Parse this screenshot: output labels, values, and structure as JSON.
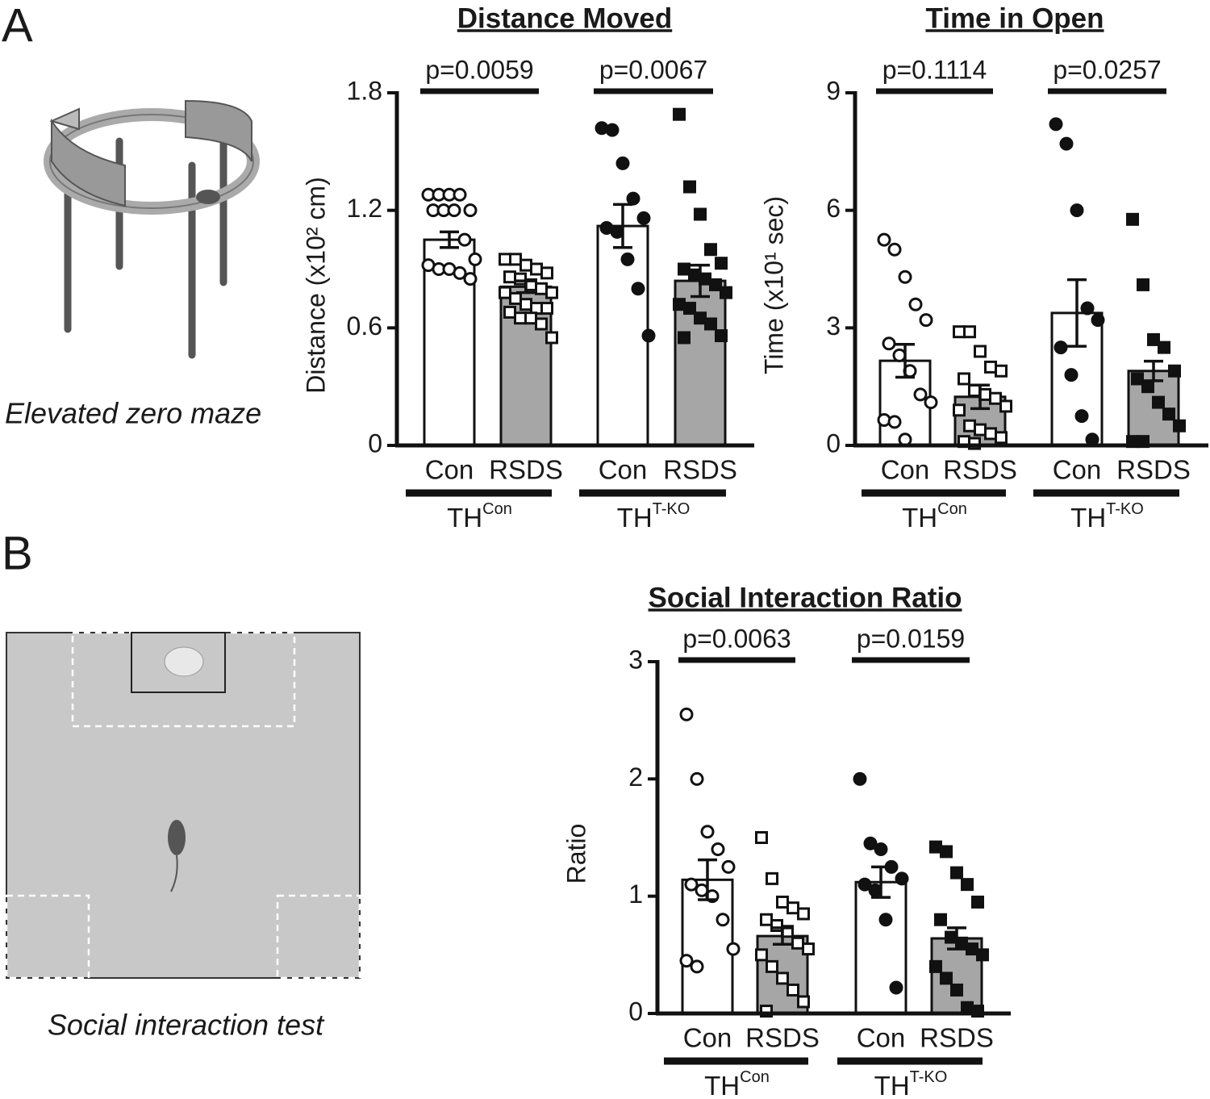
{
  "panels": [
    {
      "letter": "A",
      "caption": "Elevated zero maze"
    },
    {
      "letter": "B",
      "caption": "Social interaction test"
    }
  ],
  "chart_data": [
    {
      "type": "bar",
      "title": "Distance Moved",
      "y_label": "Distance (x10² cm)",
      "categories": [
        "Con",
        "RSDS",
        "Con",
        "RSDS"
      ],
      "groups": [
        {
          "name": "TH",
          "sup": "Con",
          "p": "p=0.0059"
        },
        {
          "name": "TH",
          "sup": "T-KO",
          "p": "p=0.0067"
        }
      ],
      "ylim": [
        0,
        1.8
      ],
      "yticks": [
        0,
        0.6,
        1.2,
        1.8
      ],
      "bars": [
        {
          "mean": 1.05,
          "sem": 0.04,
          "fill": "#ffffff",
          "marker": "circle",
          "filled": false,
          "points": [
            1.28,
            1.28,
            1.28,
            1.28,
            1.2,
            1.2,
            1.2,
            1.2,
            1.05,
            0.95,
            0.92,
            0.9,
            0.9,
            0.88,
            0.85
          ]
        },
        {
          "mean": 0.81,
          "sem": 0.03,
          "fill": "#a6a6a6",
          "marker": "square",
          "filled": false,
          "points": [
            0.95,
            0.95,
            0.92,
            0.9,
            0.88,
            0.86,
            0.85,
            0.82,
            0.8,
            0.78,
            0.78,
            0.75,
            0.72,
            0.7,
            0.7,
            0.68,
            0.65,
            0.65,
            0.62,
            0.55
          ]
        },
        {
          "mean": 1.12,
          "sem": 0.11,
          "fill": "#ffffff",
          "marker": "circle",
          "filled": true,
          "points": [
            1.62,
            1.61,
            1.44,
            1.26,
            1.16,
            1.11,
            1.09,
            0.95,
            0.8,
            0.56
          ]
        },
        {
          "mean": 0.84,
          "sem": 0.08,
          "fill": "#a6a6a6",
          "marker": "square",
          "filled": true,
          "points": [
            1.69,
            1.32,
            1.18,
            1.0,
            0.93,
            0.9,
            0.87,
            0.85,
            0.82,
            0.78,
            0.72,
            0.7,
            0.65,
            0.62,
            0.56,
            0.55
          ]
        }
      ]
    },
    {
      "type": "bar",
      "title": "Time in Open",
      "y_label": "Time (x10¹ sec)",
      "categories": [
        "Con",
        "RSDS",
        "Con",
        "RSDS"
      ],
      "groups": [
        {
          "name": "TH",
          "sup": "Con",
          "p": "p=0.1114"
        },
        {
          "name": "TH",
          "sup": "T-KO",
          "p": "p=0.0257"
        }
      ],
      "ylim": [
        0,
        9
      ],
      "yticks": [
        0,
        3,
        6,
        9
      ],
      "bars": [
        {
          "mean": 2.16,
          "sem": 0.42,
          "fill": "#ffffff",
          "marker": "circle",
          "filled": false,
          "points": [
            5.25,
            5.0,
            4.3,
            3.6,
            3.2,
            2.6,
            2.3,
            1.9,
            1.3,
            1.1,
            0.65,
            0.6,
            0.15
          ]
        },
        {
          "mean": 1.24,
          "sem": 0.3,
          "fill": "#a6a6a6",
          "marker": "square",
          "filled": false,
          "points": [
            2.9,
            2.9,
            2.4,
            2.0,
            1.9,
            1.7,
            1.4,
            1.3,
            1.2,
            1.0,
            0.9,
            0.5,
            0.4,
            0.3,
            0.2,
            0.1,
            0.05
          ]
        },
        {
          "mean": 3.38,
          "sem": 0.85,
          "fill": "#ffffff",
          "marker": "circle",
          "filled": true,
          "points": [
            8.2,
            7.7,
            6.0,
            3.5,
            3.2,
            2.5,
            1.8,
            0.75,
            0.15
          ]
        },
        {
          "mean": 1.9,
          "sem": 0.25,
          "fill": "#a6a6a6",
          "marker": "square",
          "filled": true,
          "points": [
            5.77,
            4.1,
            2.7,
            2.5,
            1.9,
            1.7,
            1.5,
            1.1,
            0.8,
            0.5,
            0.1,
            0.1
          ]
        }
      ]
    },
    {
      "type": "bar",
      "title": "Social Interaction Ratio",
      "y_label": "Ratio",
      "categories": [
        "Con",
        "RSDS",
        "Con",
        "RSDS"
      ],
      "groups": [
        {
          "name": "TH",
          "sup": "Con",
          "p": "p=0.0063"
        },
        {
          "name": "TH",
          "sup": "T-KO",
          "p": "p=0.0159"
        }
      ],
      "ylim": [
        0,
        3
      ],
      "yticks": [
        0,
        1,
        2,
        3
      ],
      "bars": [
        {
          "mean": 1.14,
          "sem": 0.17,
          "fill": "#ffffff",
          "marker": "circle",
          "filled": false,
          "points": [
            2.55,
            2.0,
            1.55,
            1.4,
            1.25,
            1.1,
            1.05,
            1.0,
            0.8,
            0.55,
            0.45,
            0.4
          ]
        },
        {
          "mean": 0.66,
          "sem": 0.07,
          "fill": "#a6a6a6",
          "marker": "square",
          "filled": false,
          "points": [
            1.5,
            1.15,
            0.95,
            0.9,
            0.85,
            0.8,
            0.75,
            0.7,
            0.6,
            0.55,
            0.5,
            0.4,
            0.3,
            0.2,
            0.1,
            0.02
          ]
        },
        {
          "mean": 1.12,
          "sem": 0.13,
          "fill": "#ffffff",
          "marker": "circle",
          "filled": true,
          "points": [
            2.0,
            1.45,
            1.4,
            1.25,
            1.15,
            1.1,
            1.05,
            0.8,
            0.22
          ]
        },
        {
          "mean": 0.64,
          "sem": 0.09,
          "fill": "#a6a6a6",
          "marker": "square",
          "filled": true,
          "points": [
            1.42,
            1.38,
            1.2,
            1.1,
            0.95,
            0.8,
            0.65,
            0.6,
            0.55,
            0.5,
            0.4,
            0.3,
            0.2,
            0.05,
            0.02
          ]
        }
      ]
    }
  ]
}
